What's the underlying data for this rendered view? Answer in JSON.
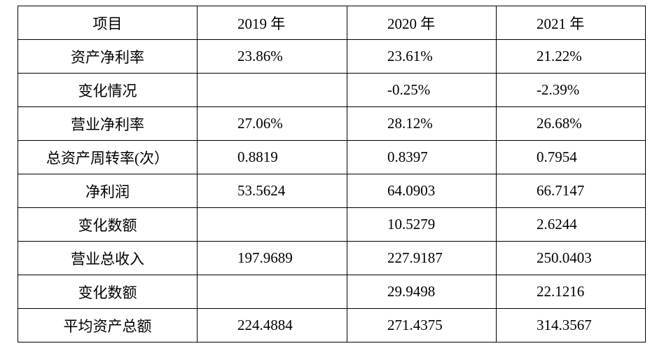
{
  "table": {
    "header": [
      "项目",
      "2019 年",
      "2020 年",
      "2021 年"
    ],
    "rows": [
      [
        "资产净利率",
        "23.86%",
        "23.61%",
        "21.22%"
      ],
      [
        "变化情况",
        null,
        "-0.25%",
        "-2.39%"
      ],
      [
        "营业净利率",
        "27.06%",
        "28.12%",
        "26.68%"
      ],
      [
        "总资产周转率(次）",
        "0.8819",
        "0.8397",
        "0.7954"
      ],
      [
        "净利润",
        "53.5624",
        "64.0903",
        "66.7147"
      ],
      [
        "变化数额",
        null,
        "10.5279",
        "2.6244"
      ],
      [
        "营业总收入",
        "197.9689",
        "227.9187",
        "250.0403"
      ],
      [
        "变化数额",
        null,
        "29.9498",
        "22.1216"
      ],
      [
        "平均资产总额",
        "224.4884",
        "271.4375",
        "314.3567"
      ]
    ]
  }
}
